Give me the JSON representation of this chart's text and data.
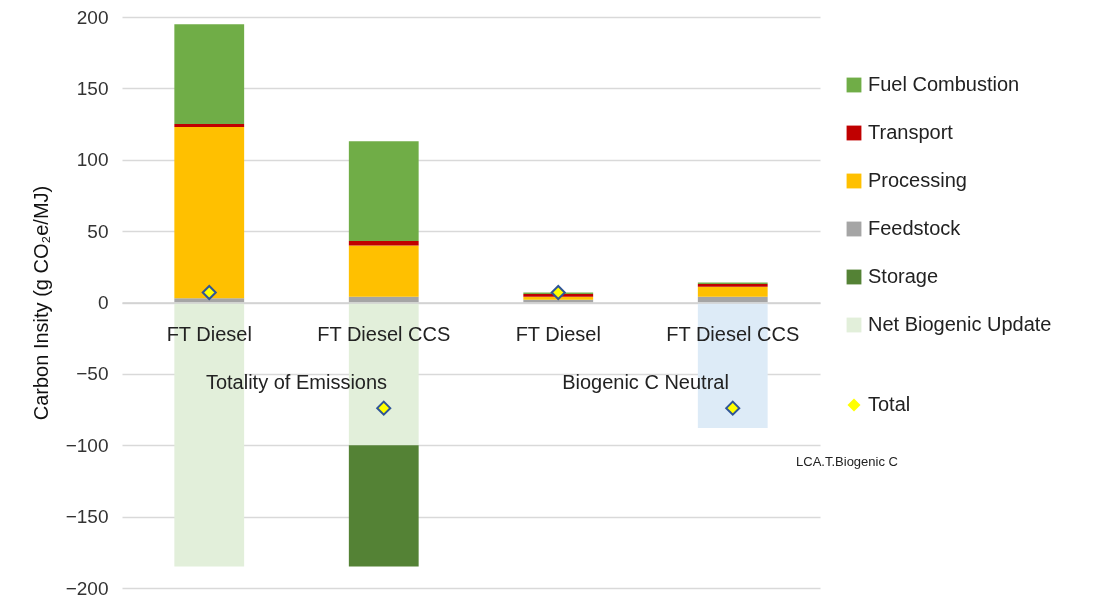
{
  "chart_data": {
    "type": "bar",
    "stacked": true,
    "ylabel": "Carbon Insity (g CO₂e/MJ)",
    "categories": [
      "FT Diesel",
      "FT Diesel CCS",
      "FT Diesel",
      "FT Diesel CCS"
    ],
    "series": [
      {
        "name": "Feedstock",
        "color": "#a5a5a5",
        "values": [
          3,
          4,
          2,
          4
        ]
      },
      {
        "name": "Processing",
        "color": "#ffc000",
        "values": [
          120,
          36,
          2,
          7
        ]
      },
      {
        "name": "Transport",
        "color": "#c00000",
        "values": [
          2,
          3,
          2,
          2
        ]
      },
      {
        "name": "Fuel Combustion",
        "color": "#70ad47",
        "values": [
          70,
          70,
          1,
          1
        ]
      },
      {
        "name": "Net Biogenic Update",
        "color": "#e2efda",
        "colors": [
          "#e2efda",
          "#e2efda",
          null,
          "#ddebf7"
        ],
        "values": [
          -185,
          -100,
          null,
          -88
        ]
      },
      {
        "name": "Storage",
        "color": "#548235",
        "values": [
          null,
          -85,
          null,
          null
        ]
      },
      {
        "name": "Total",
        "type": "scatter",
        "marker": "diamond",
        "color": "#ffff00",
        "values": [
          7,
          -74,
          7,
          -74
        ]
      }
    ],
    "ylim": [
      -200,
      200
    ],
    "yticks": [
      -200,
      -150,
      -100,
      -50,
      0,
      50,
      100,
      150,
      200
    ],
    "grid": "y",
    "legend": "right",
    "annotations": [
      "Totality of Emissions",
      "Biogenic C Neutral",
      "LCA.T.Biogenic C"
    ]
  }
}
